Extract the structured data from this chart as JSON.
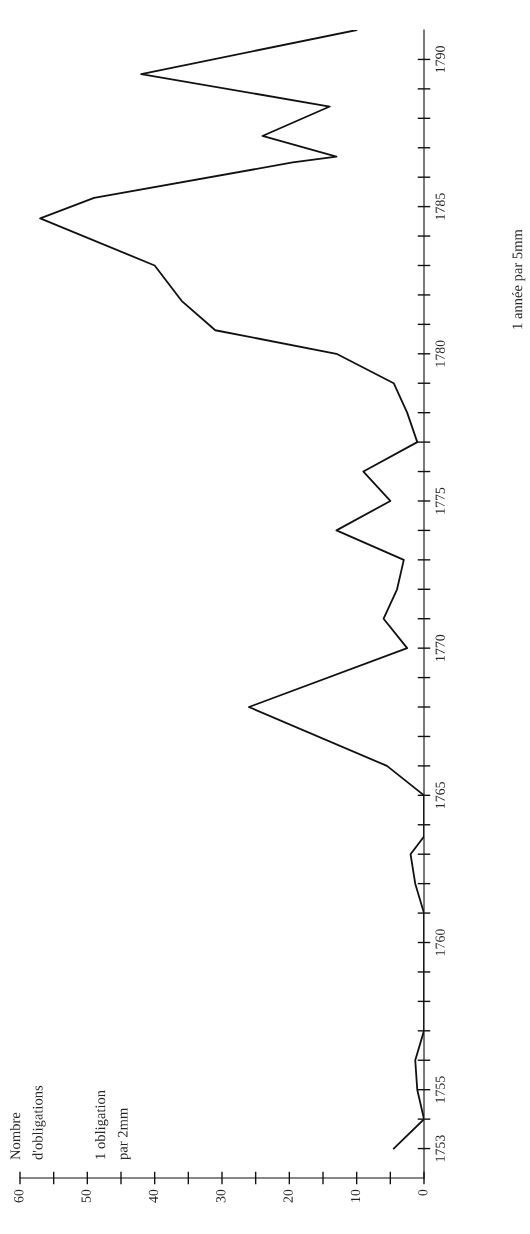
{
  "chart_data": {
    "type": "line",
    "annotations": [
      "Nombre\nd'obligations",
      "1 obligation\npar 2mm",
      "1 année par 5mm"
    ],
    "color": "#111111",
    "x": [
      4.5,
      0,
      1,
      1.3,
      0,
      0,
      0,
      0,
      0,
      1.3,
      2,
      0,
      0,
      0,
      5.5,
      26,
      2.5,
      6,
      4,
      3,
      13,
      5,
      9,
      1,
      2.5,
      4.5,
      13,
      31,
      36,
      40,
      57,
      49,
      19.5,
      13,
      24,
      14,
      42,
      10
    ],
    "values": [
      1753,
      1754,
      1755,
      1756,
      1757,
      1758,
      1759,
      1760,
      1761,
      1762,
      1763,
      1763.6,
      1764,
      1765,
      1766,
      1768,
      1770,
      1771,
      1772,
      1773,
      1774,
      1775,
      1776,
      1777,
      1778,
      1779,
      1780,
      1780.8,
      1781.8,
      1783,
      1784.6,
      1785.3,
      1786.5,
      1786.7,
      1787.4,
      1788.4,
      1789.5,
      1791
    ],
    "ylim": [
      1752,
      1791
    ],
    "yticks": [
      {
        "value": 1753,
        "label": "1753"
      },
      {
        "value": 1754,
        "label": null
      },
      {
        "value": 1755,
        "label": "1755"
      },
      {
        "value": 1756,
        "label": null
      },
      {
        "value": 1757,
        "label": null
      },
      {
        "value": 1758,
        "label": null
      },
      {
        "value": 1759,
        "label": null
      },
      {
        "value": 1760,
        "label": "1760"
      },
      {
        "value": 1761,
        "label": null
      },
      {
        "value": 1762,
        "label": null
      },
      {
        "value": 1763,
        "label": null
      },
      {
        "value": 1764,
        "label": null
      },
      {
        "value": 1765,
        "label": "1765"
      },
      {
        "value": 1766,
        "label": null
      },
      {
        "value": 1767,
        "label": null
      },
      {
        "value": 1768,
        "label": null
      },
      {
        "value": 1769,
        "label": null
      },
      {
        "value": 1770,
        "label": "1770"
      },
      {
        "value": 1771,
        "label": null
      },
      {
        "value": 1772,
        "label": null
      },
      {
        "value": 1773,
        "label": null
      },
      {
        "value": 1774,
        "label": null
      },
      {
        "value": 1775,
        "label": "1775"
      },
      {
        "value": 1776,
        "label": null
      },
      {
        "value": 1777,
        "label": null
      },
      {
        "value": 1778,
        "label": null
      },
      {
        "value": 1779,
        "label": null
      },
      {
        "value": 1780,
        "label": "1780"
      },
      {
        "value": 1781,
        "label": null
      },
      {
        "value": 1782,
        "label": null
      },
      {
        "value": 1783,
        "label": null
      },
      {
        "value": 1784,
        "label": null
      },
      {
        "value": 1785,
        "label": "1785"
      },
      {
        "value": 1786,
        "label": null
      },
      {
        "value": 1787,
        "label": null
      },
      {
        "value": 1788,
        "label": null
      },
      {
        "value": 1789,
        "label": null
      },
      {
        "value": 1790,
        "label": "1790"
      }
    ],
    "xlim": [
      60,
      0
    ],
    "xticks": [
      60,
      {
        "value": 55,
        "label": null
      },
      50,
      {
        "value": 45,
        "label": null
      },
      40,
      {
        "value": 35,
        "label": null
      },
      30,
      {
        "value": 25,
        "label": null
      },
      20,
      {
        "value": 15,
        "label": null
      },
      10,
      {
        "value": 5,
        "label": null
      },
      0
    ]
  }
}
